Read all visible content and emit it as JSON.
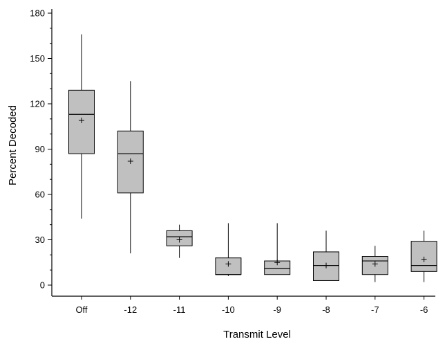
{
  "chart_data": {
    "type": "box",
    "xlabel": "Transmit Level",
    "ylabel": "Percent Decoded",
    "ylim": [
      0,
      180
    ],
    "yticks": [
      0,
      30,
      60,
      90,
      120,
      150,
      180
    ],
    "categories": [
      "Off",
      "-12",
      "-11",
      "-10",
      "-9",
      "-8",
      "-7",
      "-6"
    ],
    "boxes": [
      {
        "category": "Off",
        "min": 44,
        "q1": 87,
        "median": 113,
        "q3": 129,
        "max": 166,
        "mean": 109
      },
      {
        "category": "-12",
        "min": 21,
        "q1": 61,
        "median": 87,
        "q3": 102,
        "max": 135,
        "mean": 82
      },
      {
        "category": "-11",
        "min": 18,
        "q1": 26,
        "median": 32,
        "q3": 36,
        "max": 40,
        "mean": 30
      },
      {
        "category": "-10",
        "min": 6,
        "q1": 7,
        "median": 7,
        "q3": 18,
        "max": 41,
        "mean": 14
      },
      {
        "category": "-9",
        "min": 7,
        "q1": 7,
        "median": 11,
        "q3": 16,
        "max": 41,
        "mean": 15
      },
      {
        "category": "-8",
        "min": 3,
        "q1": 3,
        "median": 13,
        "q3": 22,
        "max": 36,
        "mean": 13
      },
      {
        "category": "-7",
        "min": 2,
        "q1": 7,
        "median": 16,
        "q3": 19,
        "max": 26,
        "mean": 14
      },
      {
        "category": "-6",
        "min": 2,
        "q1": 9,
        "median": 13,
        "q3": 29,
        "max": 36,
        "mean": 17
      }
    ],
    "colors": {
      "box_fill": "#c0c0c0",
      "stroke": "#000000"
    },
    "grid": false,
    "legend": "none"
  }
}
